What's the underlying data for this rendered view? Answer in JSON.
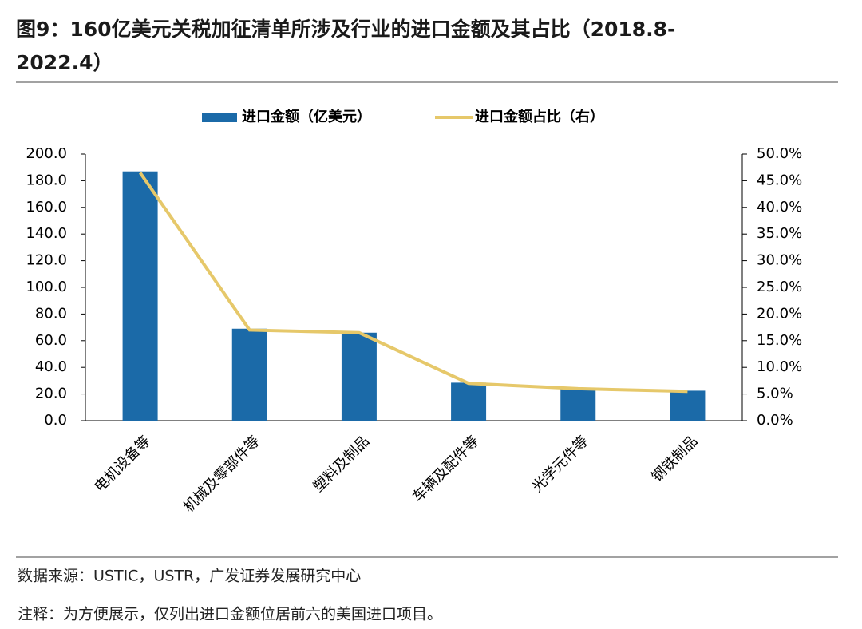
{
  "chart_data": {
    "type": "bar",
    "title_lines": [
      "图9：160亿美元关税加征清单所涉及行业的进口金额及其占比（2018.8-",
      "2022.4）"
    ],
    "categories": [
      "电机设备等",
      "机械及零部件等",
      "塑料及制品",
      "车辆及配件等",
      "光学元件等",
      "钢铁制品"
    ],
    "series": [
      {
        "name": "进口金额（亿美元）",
        "type": "bar",
        "color": "#1b6aa8",
        "values": [
          187,
          69,
          66,
          28.5,
          24,
          22.5
        ]
      },
      {
        "name": "进口金额占比（右）",
        "type": "line",
        "axis": "y2",
        "color": "#e6c86a",
        "values": [
          46.5,
          17,
          16.5,
          7,
          6,
          5.5
        ]
      }
    ],
    "ylim": [
      0,
      200
    ],
    "yticks": [
      {
        "value": 0,
        "label": "0.0"
      },
      {
        "value": 20,
        "label": "20.0"
      },
      {
        "value": 40,
        "label": "40.0"
      },
      {
        "value": 60,
        "label": "60.0"
      },
      {
        "value": 80,
        "label": "80.0"
      },
      {
        "value": 100,
        "label": "100.0"
      },
      {
        "value": 120,
        "label": "120.0"
      },
      {
        "value": 140,
        "label": "140.0"
      },
      {
        "value": 160,
        "label": "160.0"
      },
      {
        "value": 180,
        "label": "180.0"
      },
      {
        "value": 200,
        "label": "200.0"
      }
    ],
    "y2lim": [
      0,
      50
    ],
    "y2ticks": [
      {
        "value": 0,
        "label": "0.0%"
      },
      {
        "value": 5,
        "label": "5.0%"
      },
      {
        "value": 10,
        "label": "10.0%"
      },
      {
        "value": 15,
        "label": "15.0%"
      },
      {
        "value": 20,
        "label": "20.0%"
      },
      {
        "value": 25,
        "label": "25.0%"
      },
      {
        "value": 30,
        "label": "30.0%"
      },
      {
        "value": 35,
        "label": "35.0%"
      },
      {
        "value": 40,
        "label": "40.0%"
      },
      {
        "value": 45,
        "label": "45.0%"
      },
      {
        "value": 50,
        "label": "50.0%"
      }
    ],
    "grid": false,
    "legend": "top",
    "source": "数据来源：USTIC，USTR，广发证券发展研究中心",
    "note": "注释：为方便展示，仅列出进口金额位居前六的美国进口项目。"
  }
}
